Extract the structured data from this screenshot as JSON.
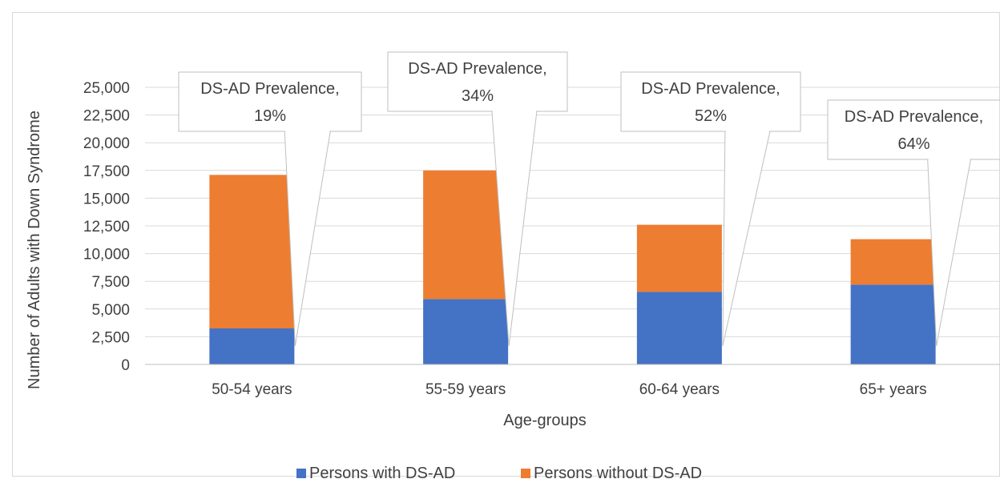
{
  "chart_data": {
    "type": "bar",
    "stacked": true,
    "title": "",
    "xlabel": "Age-groups",
    "ylabel": "Number of Adults with Down Syndrome",
    "categories": [
      "50-54 years",
      "55-59 years",
      "60-64 years",
      "65+ years"
    ],
    "series": [
      {
        "name": "Persons with DS-AD",
        "color": "#4472c4",
        "values": [
          3250,
          5900,
          6550,
          7200
        ]
      },
      {
        "name": "Persons without DS-AD",
        "color": "#ed7d31",
        "values": [
          13850,
          11600,
          6050,
          4100
        ]
      }
    ],
    "yticks": [
      0,
      2500,
      5000,
      7500,
      10000,
      12500,
      15000,
      17500,
      20000,
      22500,
      25000
    ],
    "ytick_labels": [
      "0",
      "2,500",
      "5,000",
      "7,500",
      "10,000",
      "12,500",
      "15,000",
      "17,500",
      "20,000",
      "22,500",
      "25,000"
    ],
    "ylim": [
      0,
      25000
    ],
    "grid": true,
    "legend_position": "bottom",
    "annotations": [
      {
        "category": "50-54 years",
        "line1": "DS-AD Prevalence,",
        "line2": "19%"
      },
      {
        "category": "55-59 years",
        "line1": "DS-AD Prevalence,",
        "line2": "34%"
      },
      {
        "category": "60-64 years",
        "line1": "DS-AD Prevalence,",
        "line2": "52%"
      },
      {
        "category": "65+ years",
        "line1": "DS-AD Prevalence,",
        "line2": "64%"
      }
    ]
  }
}
